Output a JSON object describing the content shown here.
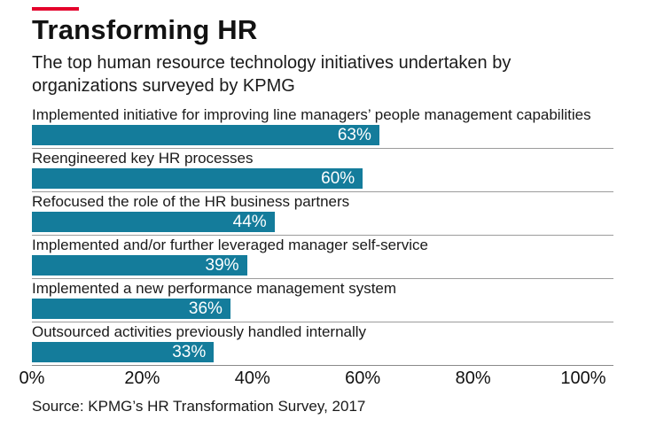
{
  "header": {
    "title": "Transforming HR",
    "subtitle": "The top human resource technology initiatives undertaken by organizations surveyed by KPMG"
  },
  "chart_data": {
    "type": "bar",
    "orientation": "horizontal",
    "title": "Transforming HR",
    "subtitle": "The top human resource technology initiatives undertaken by organizations surveyed by KPMG",
    "categories": [
      "Implemented initiative for improving line managers’ people management capabilities",
      "Reengineered key HR processes",
      "Refocused the role of the HR business partners",
      "Implemented and/or further leveraged manager self-service",
      "Implemented a new performance management system",
      "Outsourced activities previously handled internally"
    ],
    "values": [
      63,
      60,
      44,
      39,
      36,
      33
    ],
    "value_labels": [
      "63%",
      "60%",
      "44%",
      "39%",
      "36%",
      "33%"
    ],
    "xlim": [
      0,
      100
    ],
    "x_tick_values": [
      0,
      20,
      40,
      60,
      80,
      100
    ],
    "x_tick_labels": [
      "0%",
      "20%",
      "40%",
      "60%",
      "80%",
      "100%"
    ],
    "grid": false,
    "legend": false,
    "bar_color": "#147c9b",
    "value_label_color": "#ffffff",
    "accent_color": "#e4002b",
    "separator_color": "#9b9b9b"
  },
  "footer": {
    "source": "Source: KPMG’s HR Transformation Survey, 2017"
  }
}
